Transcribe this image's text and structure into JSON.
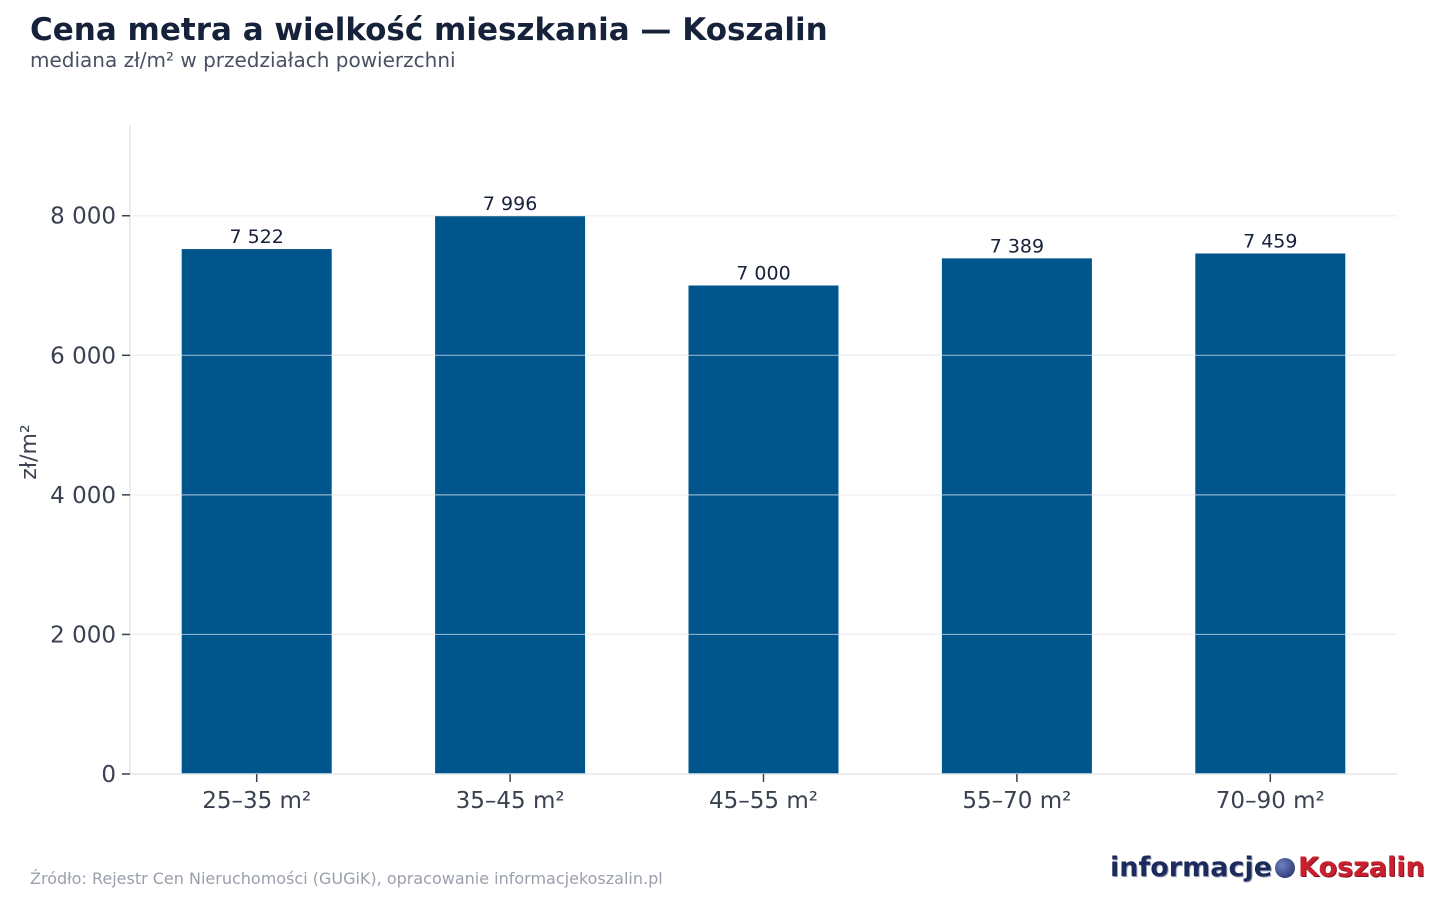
{
  "chart_data": {
    "type": "bar",
    "title": "Cena metra a wielkość mieszkania — Koszalin",
    "subtitle": "mediana zł/m² w przedziałach powierzchni",
    "xlabel": "",
    "ylabel": "zł/m²",
    "categories": [
      "25–35 m²",
      "35–45 m²",
      "45–55 m²",
      "55–70 m²",
      "70–90 m²"
    ],
    "values": [
      7522,
      7996,
      7000,
      7389,
      7459
    ],
    "value_labels": [
      "7 522",
      "7 996",
      "7 000",
      "7 389",
      "7 459"
    ],
    "ylim": [
      0,
      9300
    ],
    "yticks": [
      0,
      2000,
      4000,
      6000,
      8000
    ],
    "ytick_labels": [
      "0",
      "2 000",
      "4 000",
      "6 000",
      "8 000"
    ],
    "grid": true,
    "legend": "none",
    "bar_color": "#00558c"
  },
  "footer": {
    "source": "Źródło: Rejestr Cen Nieruchomości (GUGiK), opracowanie informacjekoszalin.pl"
  },
  "logo": {
    "part1": "informacje",
    "part2": "Koszalin"
  }
}
